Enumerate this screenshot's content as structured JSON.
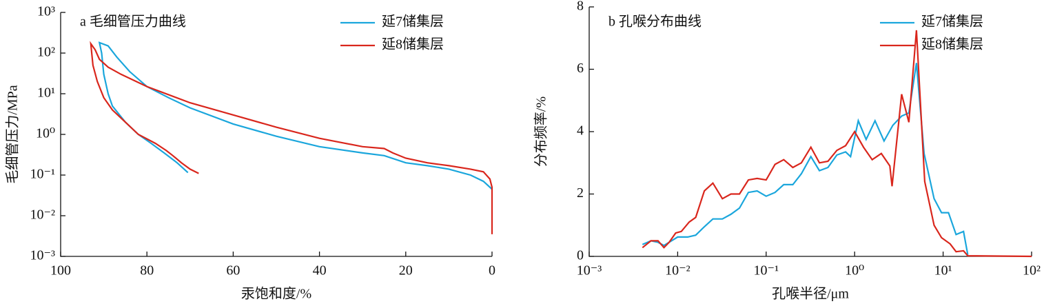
{
  "chart_data": [
    {
      "type": "line",
      "title": "a 毛细管压力曲线",
      "xlabel": "汞饱和度/%",
      "ylabel": "毛细管压力/MPa",
      "xlim": [
        100,
        0
      ],
      "xticks": [
        100,
        80,
        60,
        40,
        20,
        0
      ],
      "ylim": [
        0.001,
        1000
      ],
      "ylog": true,
      "yticks": [
        {
          "value": 0.001,
          "label": "10⁻³"
        },
        {
          "value": 0.01,
          "label": "10⁻²"
        },
        {
          "value": 0.1,
          "label": "10⁻¹"
        },
        {
          "value": 1,
          "label": "10⁰"
        },
        {
          "value": 10,
          "label": "10¹"
        },
        {
          "value": 100,
          "label": "10²"
        },
        {
          "value": 1000,
          "label": "10³"
        }
      ],
      "legend": "upper right",
      "series": [
        {
          "name": "延7储集层",
          "color": "#1aa6dc",
          "x": [
            70.5,
            73,
            76,
            79,
            82,
            85,
            88,
            89,
            90,
            90.5,
            91,
            89,
            87,
            84,
            80,
            75,
            70,
            60,
            50,
            40,
            30,
            25,
            20,
            15,
            10,
            5,
            2,
            0
          ],
          "values": [
            0.115,
            0.2,
            0.35,
            0.6,
            1,
            2,
            5,
            10,
            30,
            100,
            180,
            150,
            80,
            35,
            15,
            8,
            4.5,
            1.8,
            0.9,
            0.5,
            0.35,
            0.3,
            0.2,
            0.17,
            0.14,
            0.1,
            0.07,
            0.045
          ]
        },
        {
          "name": "延8储集层",
          "color": "#d9261c",
          "x": [
            68,
            70,
            72,
            74,
            75.5,
            78,
            82,
            85,
            88,
            90,
            91.5,
            92.5,
            92.8,
            93,
            92,
            91,
            89,
            86,
            80,
            70,
            60,
            50,
            40,
            30,
            25,
            23,
            20,
            15,
            10,
            5,
            2,
            0.5,
            0,
            0
          ],
          "values": [
            0.11,
            0.14,
            0.2,
            0.3,
            0.4,
            0.6,
            1,
            2,
            4,
            8,
            20,
            50,
            100,
            170,
            120,
            70,
            45,
            30,
            15,
            6,
            3,
            1.5,
            0.8,
            0.5,
            0.45,
            0.35,
            0.26,
            0.2,
            0.17,
            0.14,
            0.12,
            0.08,
            0.05,
            0.0035
          ]
        }
      ]
    },
    {
      "type": "line",
      "title": "b 孔喉分布曲线",
      "xlabel": "孔喉半径/μm",
      "ylabel": "分布频率/%",
      "xlim": [
        0.001,
        100
      ],
      "xlog": true,
      "xticks": [
        {
          "value": 0.001,
          "label": "10⁻³"
        },
        {
          "value": 0.01,
          "label": "10⁻²"
        },
        {
          "value": 0.1,
          "label": "10⁻¹"
        },
        {
          "value": 1,
          "label": "10⁰"
        },
        {
          "value": 10,
          "label": "10¹"
        },
        {
          "value": 100,
          "label": "10²"
        }
      ],
      "ylim": [
        0,
        8
      ],
      "yticks": [
        0,
        2,
        4,
        6,
        8
      ],
      "legend": "upper right",
      "series": [
        {
          "name": "延7储集层",
          "color": "#1aa6dc",
          "x": [
            0.004,
            0.005,
            0.006,
            0.007,
            0.008,
            0.01,
            0.013,
            0.016,
            0.02,
            0.025,
            0.032,
            0.04,
            0.05,
            0.063,
            0.079,
            0.1,
            0.126,
            0.158,
            0.2,
            0.25,
            0.32,
            0.4,
            0.5,
            0.63,
            0.79,
            0.9,
            1.1,
            1.35,
            1.7,
            2.15,
            2.7,
            3.4,
            4.1,
            5,
            6.1,
            7.9,
            9.6,
            11.5,
            14,
            17,
            19
          ],
          "values": [
            0.38,
            0.5,
            0.45,
            0.35,
            0.45,
            0.62,
            0.62,
            0.68,
            0.95,
            1.2,
            1.2,
            1.35,
            1.55,
            2.05,
            2.1,
            1.93,
            2.05,
            2.3,
            2.3,
            2.65,
            3.2,
            2.75,
            2.85,
            3.25,
            3.35,
            3.2,
            4.35,
            3.75,
            4.35,
            3.7,
            4.2,
            4.5,
            4.6,
            6.2,
            3.3,
            1.85,
            1.4,
            1.4,
            0.7,
            0.8,
            0.05
          ]
        },
        {
          "name": "延8储集层",
          "color": "#d9261c",
          "x": [
            0.004,
            0.005,
            0.006,
            0.007,
            0.008,
            0.0095,
            0.011,
            0.0135,
            0.016,
            0.02,
            0.025,
            0.032,
            0.04,
            0.05,
            0.063,
            0.079,
            0.1,
            0.126,
            0.158,
            0.2,
            0.25,
            0.32,
            0.4,
            0.5,
            0.63,
            0.79,
            1.0,
            1.26,
            1.58,
            2.0,
            2.5,
            2.65,
            3.4,
            4.1,
            5,
            6.2,
            7.9,
            9.6,
            12,
            14,
            17,
            19,
            100
          ],
          "values": [
            0.28,
            0.5,
            0.5,
            0.28,
            0.45,
            0.75,
            0.8,
            1.1,
            1.25,
            2.1,
            2.35,
            1.85,
            2.0,
            2.0,
            2.45,
            2.5,
            2.45,
            2.95,
            3.1,
            2.85,
            3.0,
            3.5,
            3.0,
            3.05,
            3.4,
            3.55,
            4.0,
            3.5,
            3.1,
            3.3,
            2.9,
            2.25,
            5.2,
            4.3,
            7.25,
            2.4,
            1.0,
            0.6,
            0.4,
            0.15,
            0.18,
            0.02,
            0
          ]
        }
      ]
    }
  ]
}
